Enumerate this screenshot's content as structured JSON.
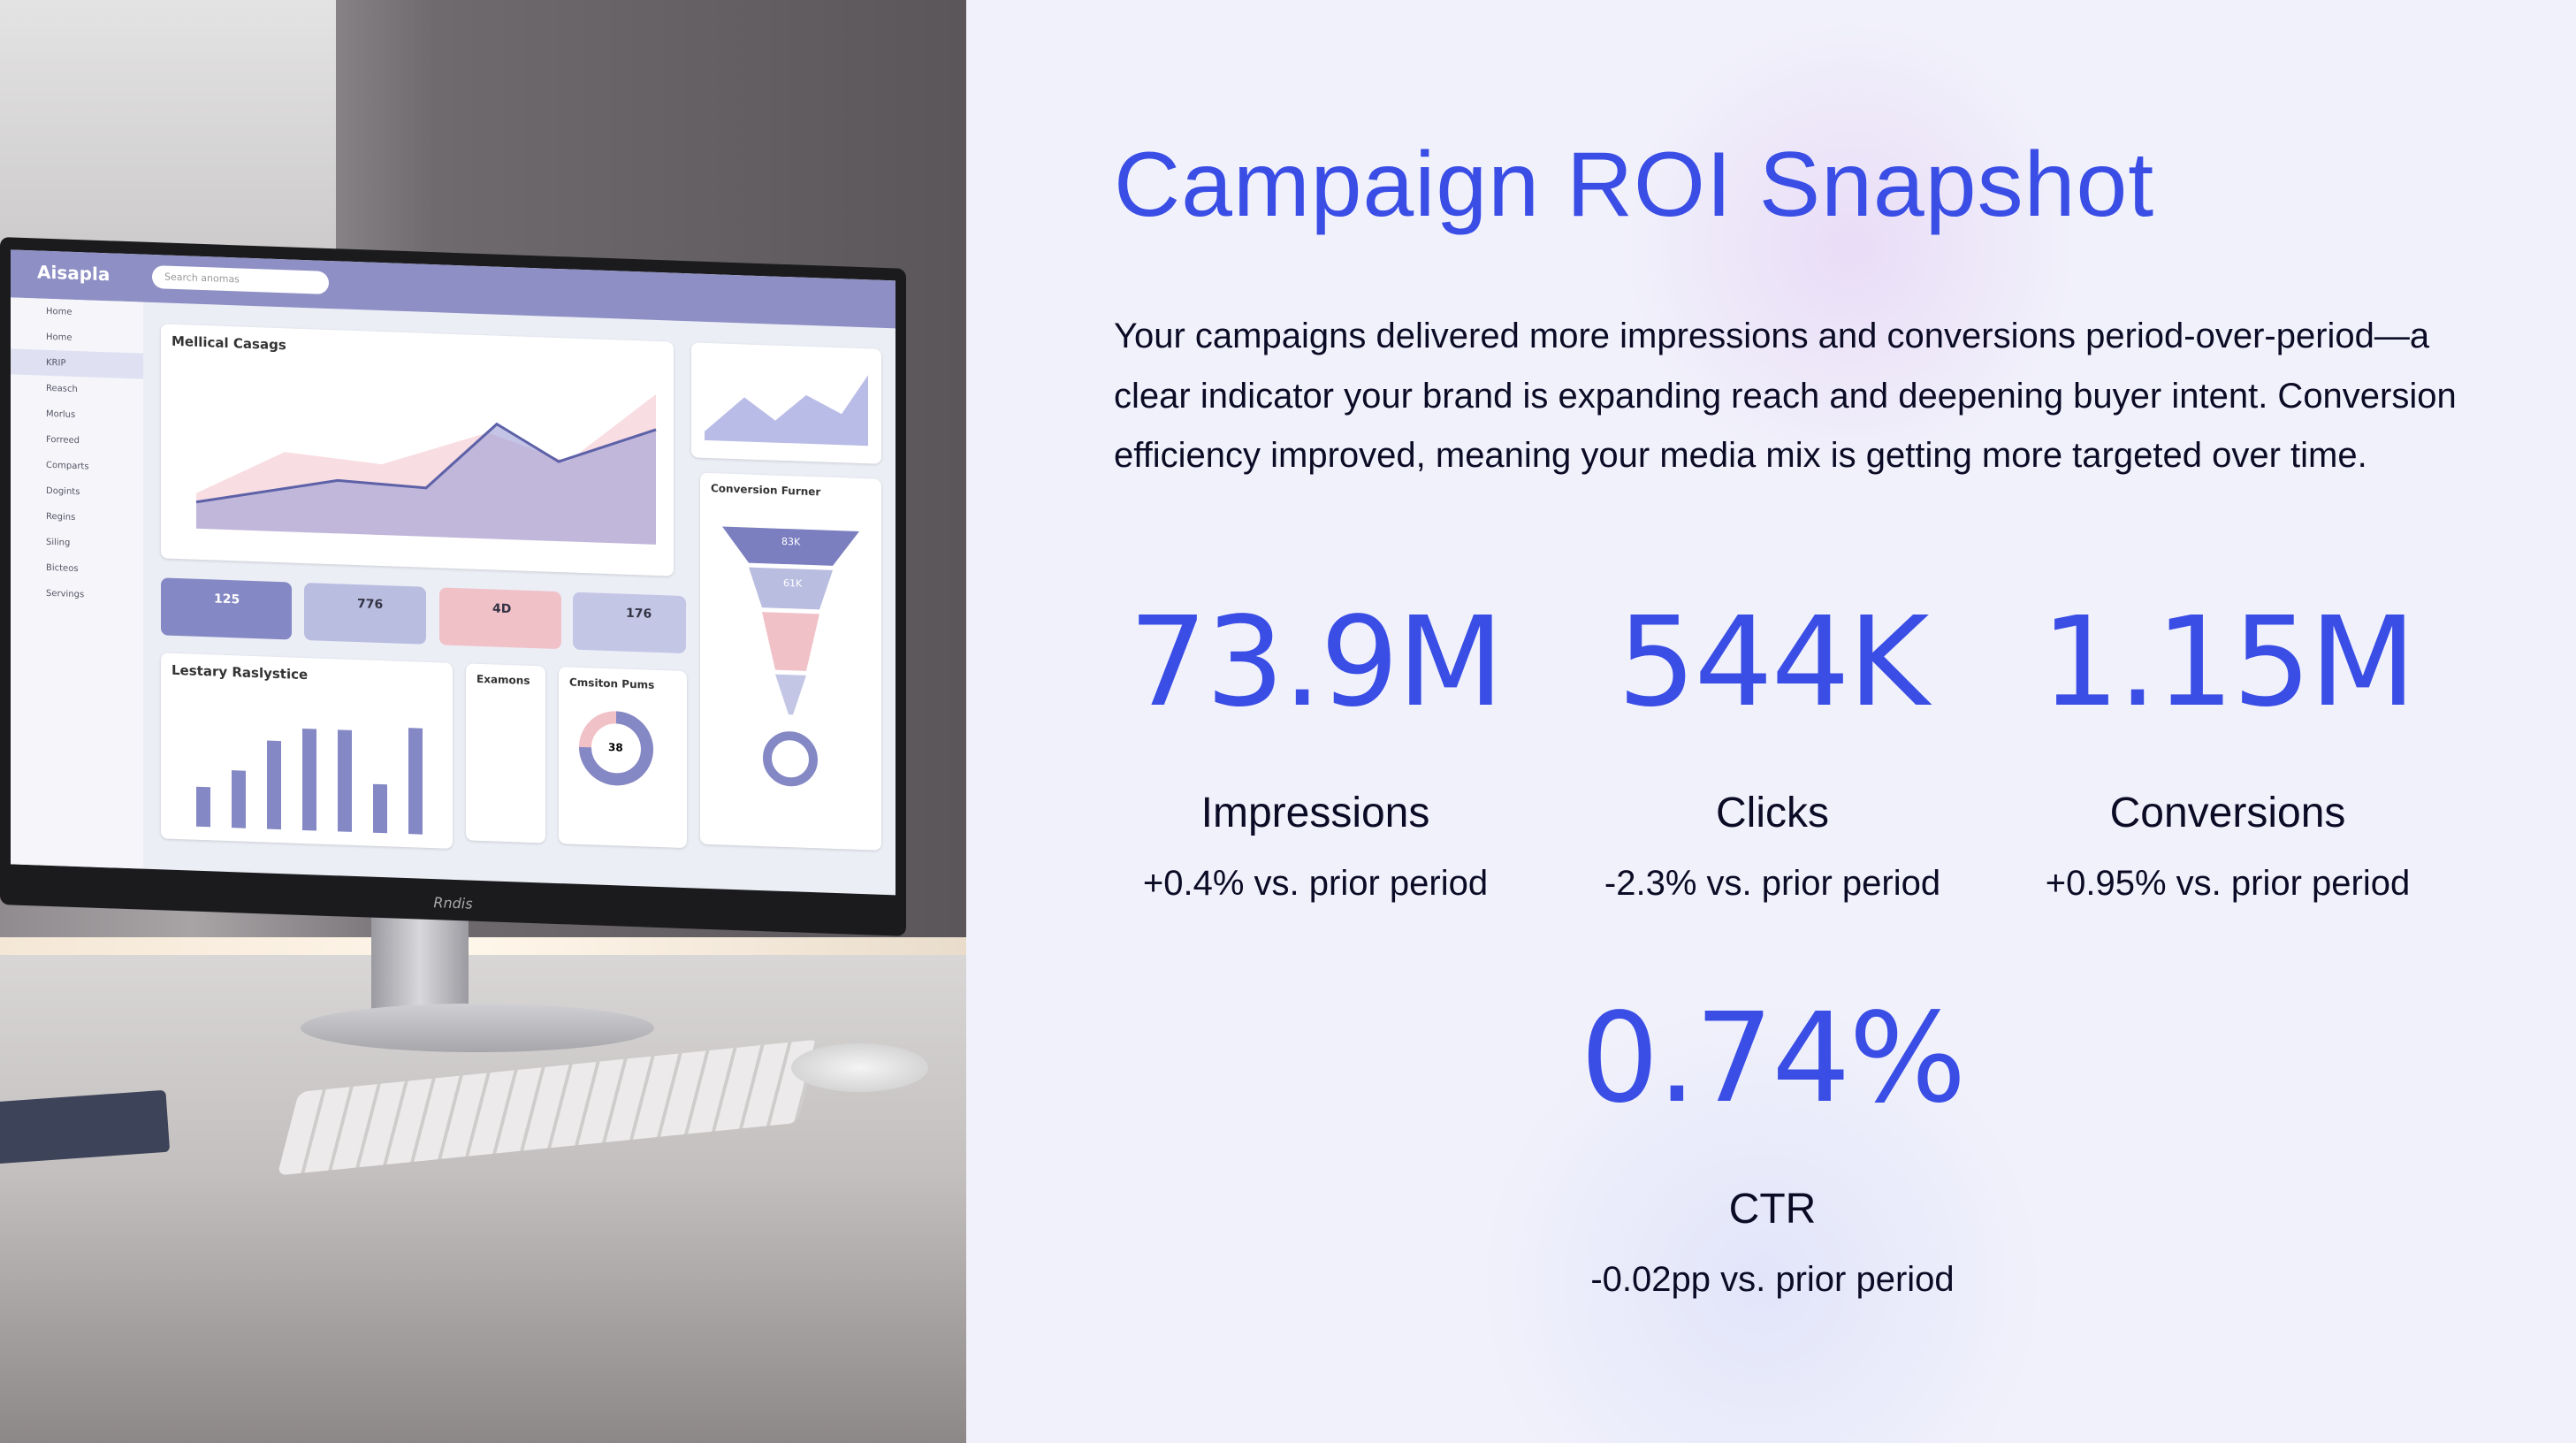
{
  "slide": {
    "title": "Campaign ROI Snapshot",
    "summary": "Your campaigns delivered more impressions and conversions period-over-period—a clear indicator your brand is expanding reach and deepening buyer intent. Conversion efficiency improved, meaning your media mix is getting more targeted over time.",
    "metrics": [
      {
        "value": "73.9M",
        "label": "Impressions",
        "change": "+0.4% vs. prior period"
      },
      {
        "value": "544K",
        "label": "Clicks",
        "change": "-2.3% vs. prior period"
      },
      {
        "value": "1.15M",
        "label": "Conversions",
        "change": "+0.95% vs. prior period"
      },
      {
        "value": "0.74%",
        "label": "CTR",
        "change": "-0.02pp vs. prior period"
      }
    ]
  },
  "photo": {
    "app_name": "Aisapla",
    "search_placeholder": "Search anomas",
    "sidebar": [
      "Home",
      "Home",
      "KRIP",
      "Reasch",
      "Morlus",
      "Forreed",
      "Comparts",
      "Dogints",
      "Regins",
      "Siling",
      "Bicteos",
      "Servings"
    ],
    "chart_title": "Mellical Casags",
    "kpis": [
      "125",
      "776",
      "4D",
      "176"
    ],
    "bar_title": "Lestary Raslystice",
    "list_title": "Examons",
    "donut_title": "Cmsiton Pums",
    "donut_value": "38",
    "funnel_title": "Conversion Furner",
    "funnel_values": [
      "83K",
      "61K"
    ],
    "monitor_brand": "Rndis",
    "colors": {
      "kpi1": "#8488c4",
      "kpi2": "#b9bde0",
      "kpi3": "#f1c1c8",
      "kpi4": "#c4c6e6"
    }
  }
}
